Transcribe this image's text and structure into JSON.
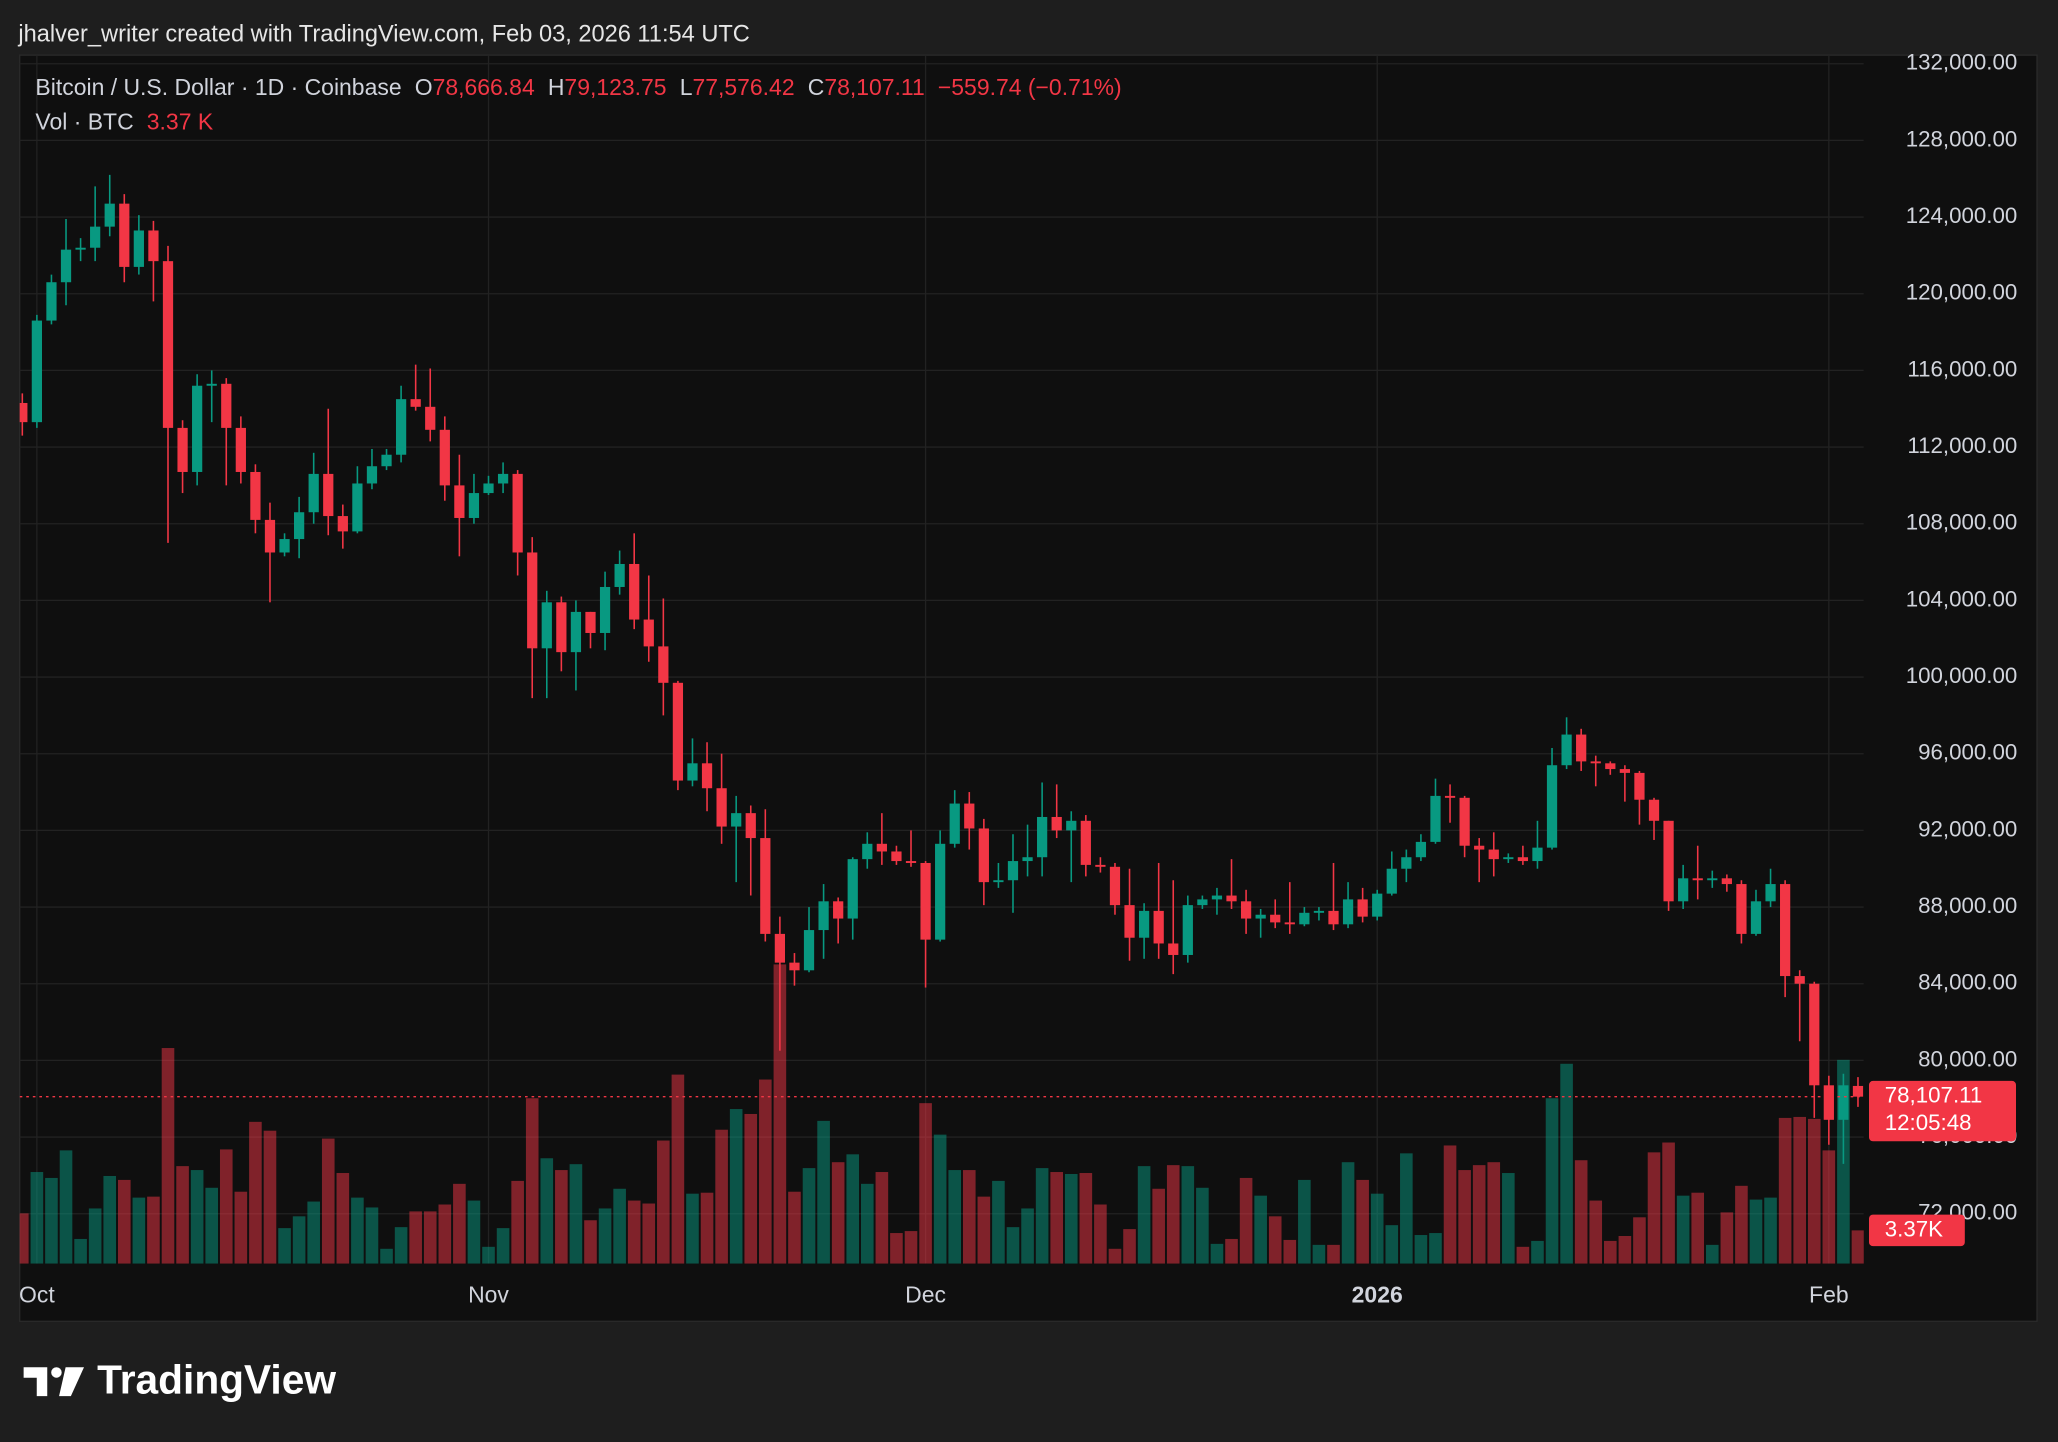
{
  "chart_data": {
    "type": "candlestick",
    "credit": "jhalver_writer created with TradingView.com, Feb 03, 2026 11:54 UTC",
    "title": "Bitcoin / U.S. Dollar · 1D · Coinbase",
    "legend": {
      "open_key": "O",
      "open": "78,666.84",
      "high_key": "H",
      "high": "79,123.75",
      "low_key": "L",
      "low": "77,576.42",
      "close_key": "C",
      "close": "78,107.11",
      "change": "−559.74 (−0.71%)",
      "volume_name": "Vol · BTC",
      "volume": "3.37 K"
    },
    "scale_labels": {
      "price": "78,107.11",
      "countdown": "12:05:48",
      "volume": "3.37K"
    },
    "branding": "TradingView",
    "up_color": "#089981",
    "down_color": "#f23645",
    "grid": true,
    "categories": [
      null,
      "Oct",
      null,
      null,
      null,
      null,
      null,
      null,
      null,
      null,
      null,
      null,
      null,
      null,
      null,
      null,
      null,
      null,
      null,
      null,
      null,
      null,
      null,
      null,
      null,
      null,
      null,
      null,
      null,
      null,
      null,
      null,
      "Nov",
      null,
      null,
      null,
      null,
      null,
      null,
      null,
      null,
      null,
      null,
      null,
      null,
      null,
      null,
      null,
      null,
      null,
      null,
      null,
      null,
      null,
      null,
      null,
      null,
      null,
      null,
      null,
      null,
      null,
      "Dec",
      null,
      null,
      null,
      null,
      null,
      null,
      null,
      null,
      null,
      null,
      null,
      null,
      null,
      null,
      null,
      null,
      null,
      null,
      null,
      null,
      null,
      null,
      null,
      null,
      null,
      null,
      null,
      null,
      null,
      null,
      "2026",
      null,
      null,
      null,
      null,
      null,
      null,
      null,
      null,
      null,
      null,
      null,
      null,
      null,
      null,
      null,
      null,
      null,
      null,
      null,
      null,
      null,
      null,
      null,
      null,
      null,
      null,
      null,
      null,
      null,
      null,
      "Feb",
      null,
      null
    ],
    "open": [
      114300,
      113300,
      118600,
      120600,
      122300,
      122400,
      123500,
      124700,
      121400,
      123300,
      121700,
      113000,
      110700,
      115200,
      115300,
      113000,
      110700,
      108200,
      106500,
      107200,
      108600,
      110600,
      108400,
      107600,
      110100,
      111000,
      111600,
      114500,
      114100,
      112900,
      110000,
      108300,
      109600,
      110100,
      110600,
      106500,
      101500,
      103900,
      101300,
      103400,
      102300,
      104700,
      105900,
      103000,
      101600,
      99700,
      94600,
      95500,
      94200,
      92200,
      92900,
      91600,
      86600,
      85100,
      84700,
      86800,
      88300,
      87400,
      90500,
      91300,
      90900,
      90400,
      90300,
      86300,
      91300,
      93400,
      92100,
      89300,
      89400,
      90400,
      90600,
      92700,
      92000,
      92500,
      90200,
      90100,
      88100,
      86400,
      87800,
      86100,
      85500,
      88100,
      88400,
      88600,
      88300,
      87400,
      87600,
      87200,
      87100,
      87700,
      87800,
      87100,
      88400,
      87500,
      88700,
      90000,
      90600,
      91400,
      93800,
      93700,
      91200,
      91000,
      90500,
      90600,
      90400,
      91100,
      95400,
      97000,
      95600,
      95500,
      95200,
      95000,
      93600,
      92500,
      88300,
      89500,
      89400,
      89500,
      89200,
      86600,
      88300,
      89200,
      84400,
      84000,
      78700,
      76900,
      78666.84
    ],
    "high": [
      114800,
      118900,
      121000,
      123900,
      122900,
      125600,
      126200,
      125200,
      124100,
      123800,
      122500,
      113400,
      115800,
      116000,
      115600,
      113600,
      111100,
      109100,
      107500,
      109400,
      111700,
      114000,
      109000,
      111000,
      111900,
      111900,
      115200,
      116300,
      116100,
      113600,
      111600,
      110600,
      110500,
      111200,
      110800,
      107300,
      104500,
      104200,
      104000,
      103400,
      105500,
      106600,
      107500,
      105300,
      104100,
      99800,
      96800,
      96600,
      96000,
      93800,
      93300,
      93100,
      87500,
      85600,
      88000,
      89200,
      88500,
      90600,
      91900,
      92900,
      91200,
      92000,
      90400,
      92000,
      94100,
      94000,
      92600,
      90300,
      91800,
      92300,
      94500,
      94400,
      93000,
      92800,
      90600,
      90300,
      90000,
      88200,
      90300,
      89400,
      88600,
      88600,
      89000,
      90500,
      88900,
      87900,
      88400,
      89300,
      88000,
      88000,
      90300,
      89300,
      89000,
      88900,
      90900,
      91000,
      91800,
      94700,
      94400,
      93800,
      91600,
      91900,
      90800,
      91200,
      92500,
      96300,
      97900,
      97300,
      95900,
      95600,
      95400,
      95100,
      93700,
      92500,
      90200,
      91200,
      89900,
      89700,
      89400,
      88900,
      90000,
      89400,
      84700,
      84100,
      79200,
      79300,
      79123.75
    ],
    "low": [
      112600,
      113000,
      118400,
      119400,
      121700,
      121700,
      123000,
      120600,
      121000,
      119600,
      107000,
      109600,
      110000,
      113300,
      110000,
      110100,
      107500,
      103900,
      106300,
      106200,
      108000,
      107400,
      106700,
      107500,
      109800,
      110800,
      111200,
      113900,
      112300,
      109200,
      106300,
      108000,
      109500,
      109600,
      105300,
      98900,
      98900,
      100300,
      99300,
      101500,
      101400,
      104300,
      102500,
      100800,
      98000,
      94100,
      94300,
      93000,
      91300,
      89300,
      88600,
      86200,
      80500,
      83900,
      84600,
      85300,
      86100,
      86300,
      90000,
      90200,
      90200,
      90100,
      83800,
      86200,
      91100,
      91000,
      88100,
      89000,
      87700,
      89600,
      89600,
      91600,
      89300,
      89600,
      89800,
      87600,
      85200,
      85300,
      85300,
      84500,
      85100,
      87900,
      87600,
      87900,
      86600,
      86400,
      86900,
      86600,
      87000,
      87300,
      86800,
      86900,
      87200,
      87300,
      88600,
      89300,
      90400,
      91300,
      92400,
      90600,
      89300,
      89600,
      90300,
      90200,
      90000,
      91000,
      95200,
      95100,
      94300,
      94900,
      93500,
      92300,
      91500,
      87800,
      87900,
      88400,
      89000,
      88800,
      86100,
      86500,
      88000,
      83300,
      81000,
      77000,
      75600,
      74600,
      77576.42
    ],
    "close": [
      113300,
      118600,
      120600,
      122300,
      122400,
      123500,
      124700,
      121400,
      123300,
      121700,
      113000,
      110700,
      115200,
      115300,
      113000,
      110700,
      108200,
      106500,
      107200,
      108600,
      110600,
      108400,
      107600,
      110100,
      111000,
      111600,
      114500,
      114100,
      112900,
      110000,
      108300,
      109600,
      110100,
      110600,
      106500,
      101500,
      103900,
      101300,
      103400,
      102300,
      104700,
      105900,
      103000,
      101600,
      99700,
      94600,
      95500,
      94200,
      92200,
      92900,
      91600,
      86600,
      85100,
      84700,
      86800,
      88300,
      87400,
      90500,
      91300,
      90900,
      90400,
      90300,
      86300,
      91300,
      93400,
      92100,
      89300,
      89400,
      90400,
      90600,
      92700,
      92000,
      92500,
      90200,
      90100,
      88100,
      86400,
      87800,
      86100,
      85500,
      88100,
      88400,
      88600,
      88300,
      87400,
      87600,
      87200,
      87100,
      87700,
      87800,
      87100,
      88400,
      87500,
      88700,
      90000,
      90600,
      91400,
      93800,
      93700,
      91200,
      91000,
      90500,
      90600,
      90400,
      91100,
      95400,
      97000,
      95600,
      95500,
      95200,
      95000,
      93600,
      92500,
      88300,
      89500,
      89400,
      89500,
      89200,
      86600,
      88300,
      89200,
      84400,
      84000,
      78700,
      76900,
      78700,
      78107.11
    ],
    "volume": [
      5.1,
      9.3,
      8.7,
      11.5,
      2.5,
      5.6,
      8.9,
      8.5,
      6.7,
      6.8,
      21.9,
      9.9,
      9.5,
      7.7,
      11.6,
      7.3,
      14.4,
      13.5,
      3.6,
      4.8,
      6.3,
      12.7,
      9.2,
      6.7,
      5.7,
      1.5,
      3.7,
      5.3,
      5.3,
      6.0,
      8.1,
      6.4,
      1.7,
      3.6,
      8.4,
      16.8,
      10.7,
      9.5,
      10.1,
      4.4,
      5.6,
      7.6,
      6.4,
      6.1,
      12.5,
      19.2,
      7.1,
      7.2,
      13.6,
      15.7,
      15.2,
      18.7,
      30.4,
      7.3,
      9.7,
      14.5,
      10.3,
      11.1,
      8.1,
      9.3,
      3.1,
      3.3,
      16.3,
      13.1,
      9.5,
      9.5,
      6.8,
      8.4,
      3.7,
      5.6,
      9.7,
      9.3,
      9.1,
      9.2,
      6.0,
      1.5,
      3.5,
      9.9,
      7.6,
      10.0,
      9.9,
      7.7,
      2.0,
      2.5,
      8.7,
      6.9,
      4.8,
      2.4,
      8.5,
      1.9,
      1.9,
      10.3,
      8.5,
      7.1,
      3.9,
      11.2,
      2.9,
      3.1,
      12.0,
      9.5,
      10.0,
      10.3,
      9.2,
      1.7,
      2.3,
      16.8,
      20.3,
      10.5,
      6.4,
      2.3,
      2.8,
      4.7,
      11.3,
      12.3,
      6.9,
      7.2,
      1.9,
      5.2,
      7.9,
      6.5,
      6.7,
      14.8,
      14.9,
      14.7,
      11.5,
      20.7,
      3.37
    ],
    "ylim": [
      69400,
      132450
    ],
    "yticks": [
      {
        "value": 132000,
        "label": "132,000.00"
      },
      {
        "value": 128000,
        "label": "128,000.00"
      },
      {
        "value": 124000,
        "label": "124,000.00"
      },
      {
        "value": 120000,
        "label": "120,000.00"
      },
      {
        "value": 116000,
        "label": "116,000.00"
      },
      {
        "value": 112000,
        "label": "112,000.00"
      },
      {
        "value": 108000,
        "label": "108,000.00"
      },
      {
        "value": 104000,
        "label": "104,000.00"
      },
      {
        "value": 100000,
        "label": "100,000.00"
      },
      {
        "value": 96000,
        "label": "96,000.00"
      },
      {
        "value": 92000,
        "label": "92,000.00"
      },
      {
        "value": 88000,
        "label": "88,000.00"
      },
      {
        "value": 84000,
        "label": "84,000.00"
      },
      {
        "value": 80000,
        "label": "80,000.00"
      },
      {
        "value": 76000,
        "label": "76,000.00"
      },
      {
        "value": 72000,
        "label": "72,000.00"
      }
    ]
  }
}
